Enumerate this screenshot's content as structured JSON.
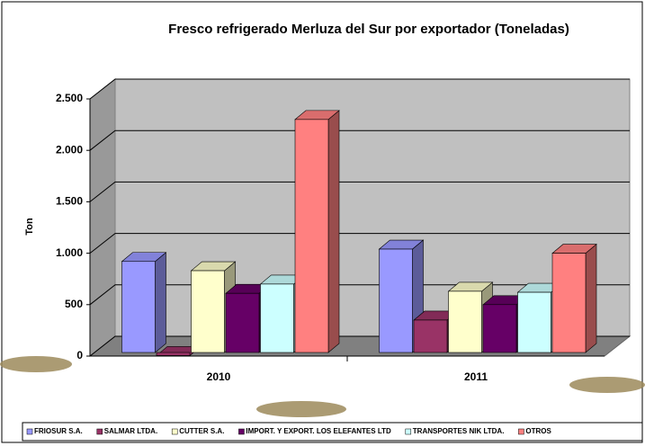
{
  "chart_data": {
    "type": "bar3d",
    "title": "Fresco refrigerado Merluza del Sur por exportador (Toneladas)",
    "y_label": "Ton",
    "categories": [
      "2010",
      "2011"
    ],
    "series": [
      {
        "name": "FRIOSUR S.A.",
        "color": "#9999ff",
        "values": [
          920,
          1040
        ]
      },
      {
        "name": "SALMAR LTDA.",
        "color": "#993366",
        "values": [
          5,
          350
        ]
      },
      {
        "name": "CUTTER S.A.",
        "color": "#ffffcc",
        "values": [
          830,
          630
        ]
      },
      {
        "name": "IMPORT. Y EXPORT. LOS ELEFANTES LTD",
        "color": "#660066",
        "values": [
          610,
          500
        ]
      },
      {
        "name": "TRANSPORTES NIK LTDA.",
        "color": "#ccffff",
        "values": [
          700,
          620
        ]
      },
      {
        "name": "OTROS",
        "color": "#ff8080",
        "values": [
          2300,
          1000
        ]
      }
    ],
    "ylim": [
      0,
      2500
    ],
    "yticks": [
      0,
      {
        "value": 500,
        "label": "500"
      },
      {
        "value": 1000,
        "label": "1.000"
      },
      {
        "value": 1500,
        "label": "1.500"
      },
      {
        "value": 2000,
        "label": "2.000"
      },
      {
        "value": 2500,
        "label": "2.500"
      }
    ],
    "grid": true,
    "legend": "bottom"
  }
}
